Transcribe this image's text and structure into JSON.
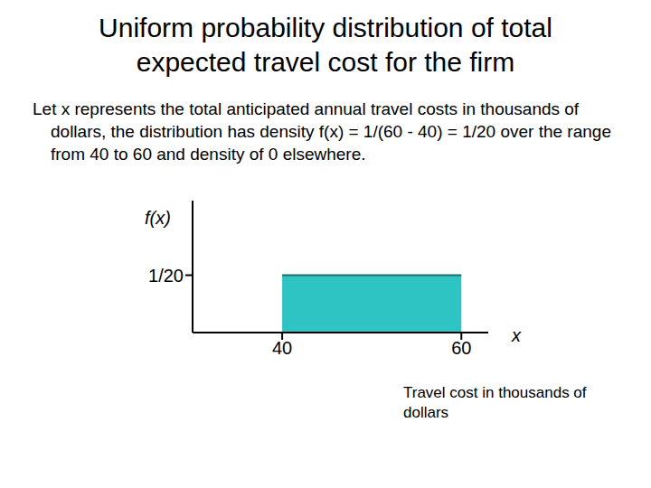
{
  "title": "Uniform probability distribution of total expected travel cost for the firm",
  "text": "Let x represents the total anticipated annual travel costs in thousands of dollars, the distribution has density f(x) = 1/(60 - 40) = 1/20 over the range from 40 to 60 and density of 0 elsewhere.",
  "chart_data": {
    "type": "area",
    "x": [
      40,
      60
    ],
    "values": [
      0.05,
      0.05
    ],
    "color": "#2ec4c4",
    "xlabel": "x",
    "ylabel": "f(x)",
    "annotations": [
      "Travel cost in thousands of dollars"
    ],
    "xlim": [
      30,
      63
    ],
    "xticks": [
      40,
      60
    ],
    "ylim": [
      0,
      0.115
    ],
    "yticks": [
      {
        "value": 0.05,
        "label": "1/20"
      }
    ],
    "grid": false
  }
}
